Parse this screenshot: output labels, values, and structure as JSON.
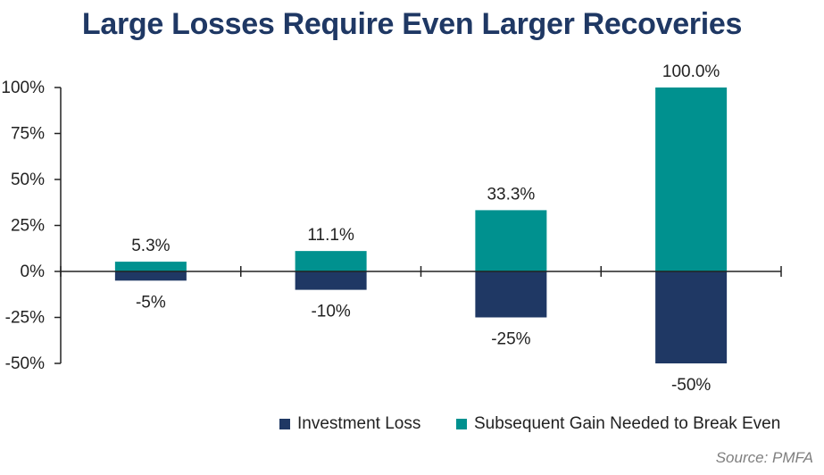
{
  "chart_data": {
    "type": "bar",
    "title": "Large Losses Require Even Larger Recoveries",
    "categories": [
      "",
      "",
      "",
      ""
    ],
    "series": [
      {
        "name": "Investment Loss",
        "values": [
          -5,
          -10,
          -25,
          -50
        ],
        "labels": [
          "-5%",
          "-10%",
          "-25%",
          "-50%"
        ],
        "color": "#1f3864"
      },
      {
        "name": "Subsequent Gain Needed to Break Even",
        "values": [
          5.3,
          11.1,
          33.3,
          100.0
        ],
        "labels": [
          "5.3%",
          "11.1%",
          "33.3%",
          "100.0%"
        ],
        "color": "#00918f"
      }
    ],
    "stacked": true,
    "ylim": [
      -50,
      100
    ],
    "yticks": [
      100,
      75,
      50,
      25,
      0,
      -25,
      -50
    ],
    "ytick_labels": [
      "100%",
      "75%",
      "50%",
      "25%",
      "0%",
      "-25%",
      "-50%"
    ],
    "grid": false,
    "legend_position": "bottom-right",
    "source": "Source: PMFA"
  }
}
